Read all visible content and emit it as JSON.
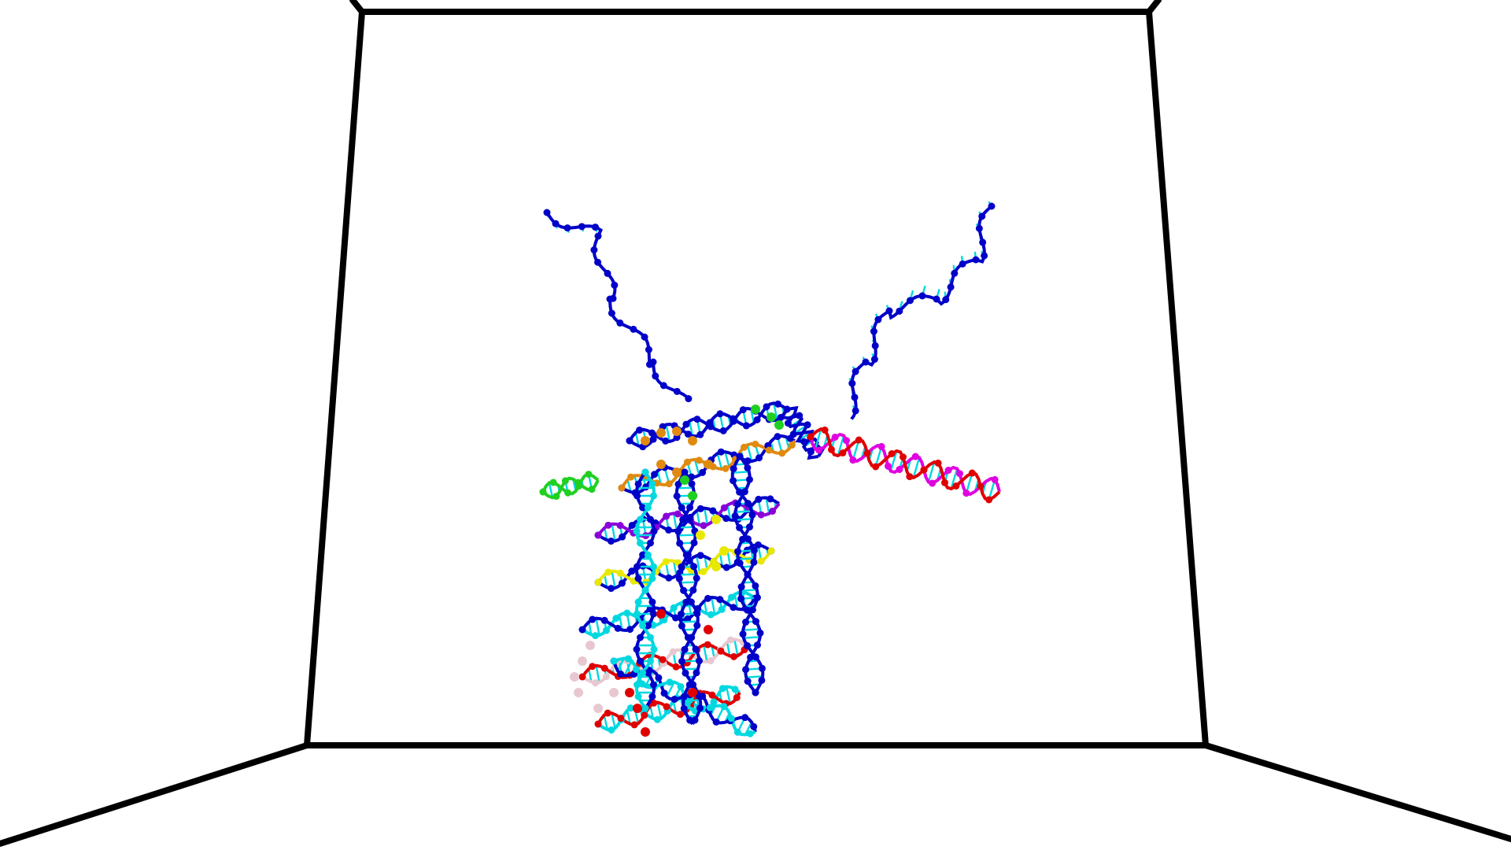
{
  "viewer": {
    "background_color": "#ffffff",
    "box_edge_color": "#000000"
  },
  "structure": {
    "type": "DNA origami / nucleic-acid strand model",
    "strand_colors": [
      {
        "name": "scaffold",
        "color": "#0000c8"
      },
      {
        "name": "bases",
        "color": "#00d8e0"
      },
      {
        "name": "staple-red",
        "color": "#e00000"
      },
      {
        "name": "staple-magenta",
        "color": "#e000e0"
      },
      {
        "name": "staple-purple",
        "color": "#8a00d8"
      },
      {
        "name": "staple-green",
        "color": "#20d020"
      },
      {
        "name": "staple-yellow",
        "color": "#e8e800"
      },
      {
        "name": "staple-orange",
        "color": "#e08a10"
      },
      {
        "name": "staple-pink",
        "color": "#e8c8d0"
      }
    ]
  }
}
